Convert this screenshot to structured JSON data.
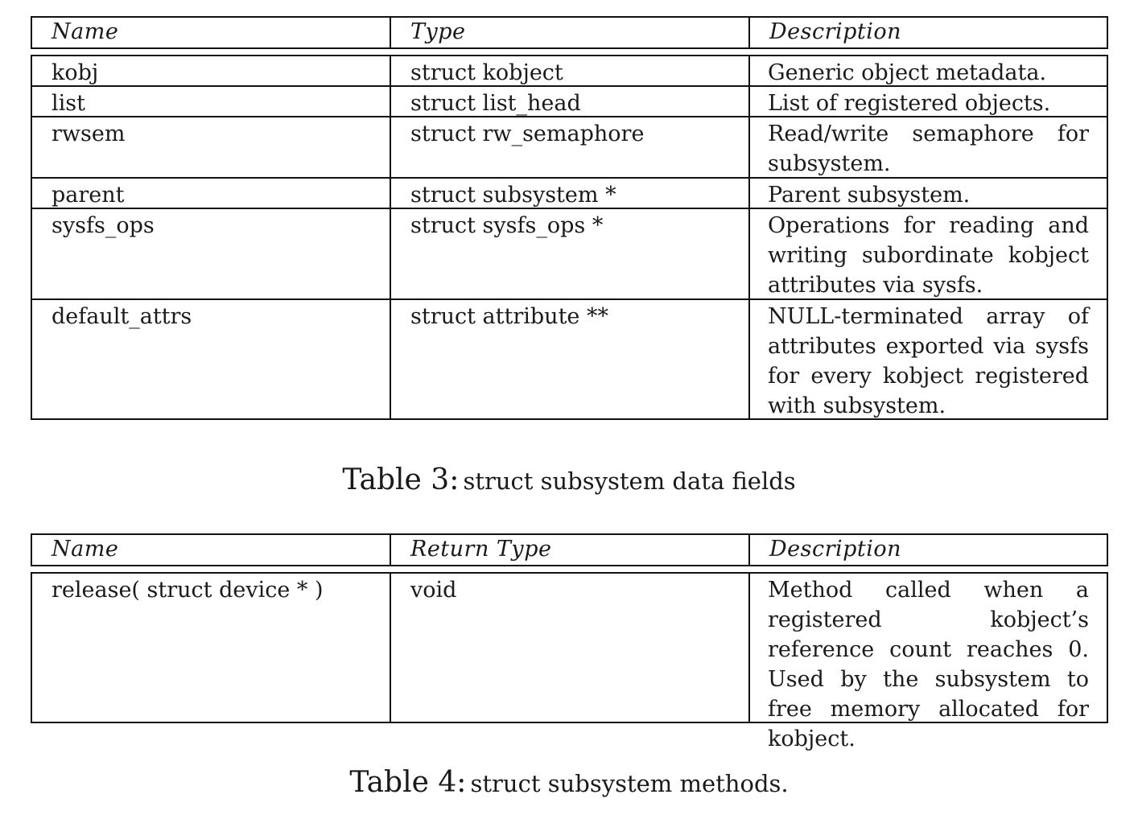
{
  "table3": {
    "headers": [
      "Name",
      "Type",
      "Description"
    ],
    "rows": [
      {
        "name": "kobj",
        "type": "struct kobject",
        "description": "Generic object metadata."
      },
      {
        "name": "list",
        "type": "struct list_head",
        "description": "List of registered objects."
      },
      {
        "name": "rwsem",
        "type": "struct rw_semaphore",
        "description": "Read/write semaphore for subsystem."
      },
      {
        "name": "parent",
        "type": "struct subsystem *",
        "description": "Parent subsystem."
      },
      {
        "name": "sysfs_ops",
        "type": "struct sysfs_ops *",
        "description": "Operations for reading and writing subordinate kobject attributes via sysfs."
      },
      {
        "name": "default_attrs",
        "type": "struct attribute **",
        "description": "NULL-terminated array of attributes exported via sysfs for every kobject registered with subsystem."
      }
    ],
    "caption_label": "Table 3:",
    "caption_text": "struct subsystem data fields"
  },
  "table4": {
    "headers": [
      "Name",
      "Return Type",
      "Description"
    ],
    "rows": [
      {
        "name": "release( struct device * )",
        "type": "void",
        "description": "Method called when a registered kobject’s reference count reaches 0. Used by the subsystem to free memory allocated for kobject."
      }
    ],
    "caption_label": "Table 4:",
    "caption_text": "struct subsystem methods."
  }
}
